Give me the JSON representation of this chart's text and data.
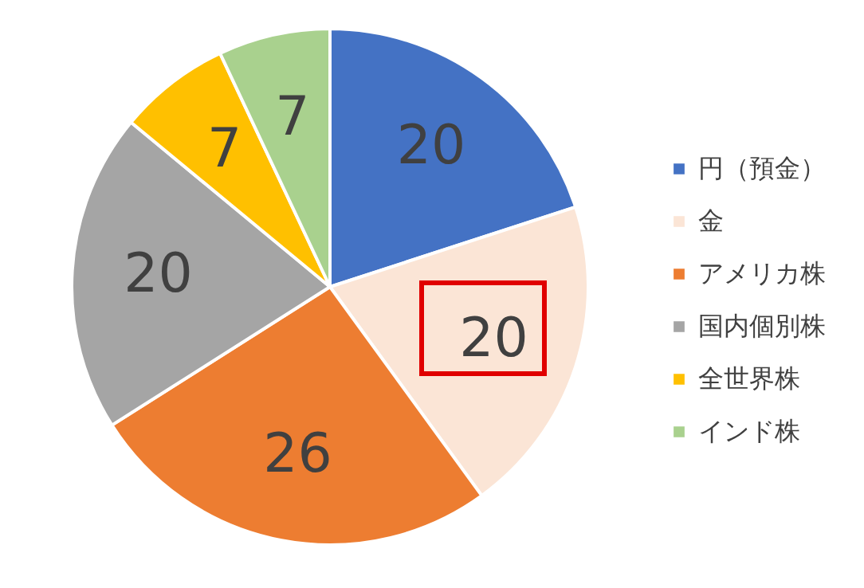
{
  "chart_data": {
    "type": "pie",
    "categories": [
      "円（預金）",
      "金",
      "アメリカ株",
      "国内個別株",
      "全世界株",
      "インド株"
    ],
    "values": [
      20,
      20,
      26,
      20,
      7,
      7
    ],
    "colors": [
      "#4472c4",
      "#fbe5d6",
      "#ed7d31",
      "#a5a5a5",
      "#ffc000",
      "#a9d18e"
    ],
    "data_labels": true,
    "legend": "right"
  }
}
